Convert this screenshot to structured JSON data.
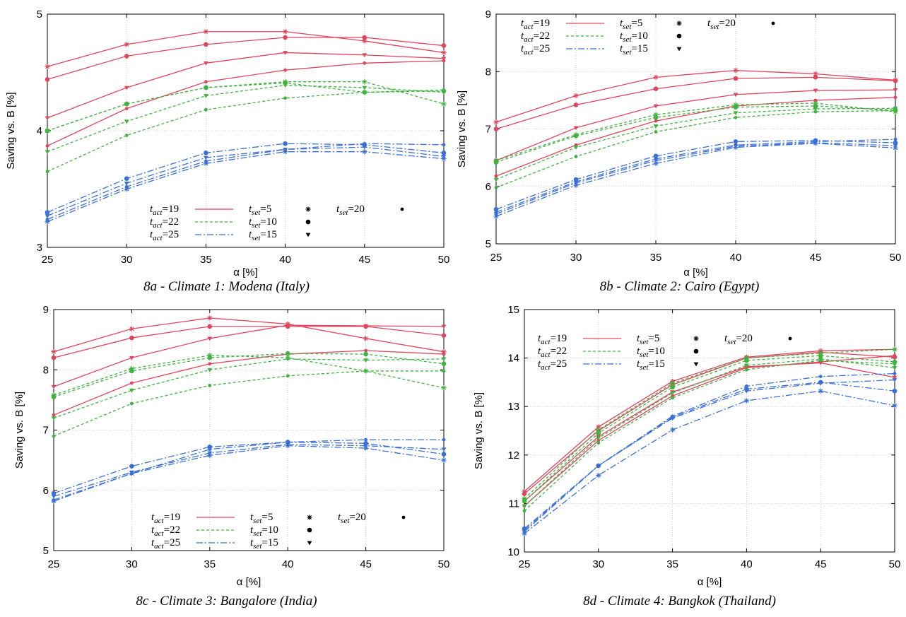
{
  "chart_data": [
    {
      "type": "line",
      "caption": "8a - Climate 1: Modena (Italy)",
      "xlabel": "α [%]",
      "ylabel": "Saving vs. B [%]",
      "xlim": [
        25,
        50
      ],
      "ylim": [
        3,
        5
      ],
      "xticks": [
        "25",
        "30",
        "35",
        "40",
        "45",
        "50"
      ],
      "yticks": [
        "3",
        "4",
        "5"
      ],
      "grid": true,
      "legend_position": "bottom-center",
      "x": [
        25,
        30,
        35,
        40,
        45,
        50
      ],
      "series": [
        {
          "tact": "19",
          "tset": "5",
          "values": [
            4.55,
            4.74,
            4.85,
            4.85,
            4.77,
            4.67
          ]
        },
        {
          "tact": "19",
          "tset": "10",
          "values": [
            4.44,
            4.64,
            4.74,
            4.8,
            4.8,
            4.73
          ]
        },
        {
          "tact": "19",
          "tset": "15",
          "values": [
            4.11,
            4.37,
            4.58,
            4.67,
            4.65,
            4.62
          ]
        },
        {
          "tact": "19",
          "tset": "20",
          "values": [
            3.87,
            4.19,
            4.42,
            4.52,
            4.58,
            4.6
          ]
        },
        {
          "tact": "22",
          "tset": "5",
          "values": [
            4.0,
            4.23,
            4.37,
            4.42,
            4.42,
            4.23
          ]
        },
        {
          "tact": "22",
          "tset": "10",
          "values": [
            4.0,
            4.23,
            4.37,
            4.41,
            4.33,
            4.34
          ]
        },
        {
          "tact": "22",
          "tset": "15",
          "values": [
            3.82,
            4.08,
            4.3,
            4.39,
            4.37,
            4.33
          ]
        },
        {
          "tact": "22",
          "tset": "20",
          "values": [
            3.65,
            3.96,
            4.18,
            4.28,
            4.33,
            4.35
          ]
        },
        {
          "tact": "25",
          "tset": "5",
          "values": [
            3.22,
            3.5,
            3.72,
            3.82,
            3.82,
            3.76
          ]
        },
        {
          "tact": "25",
          "tset": "10",
          "values": [
            3.3,
            3.59,
            3.81,
            3.89,
            3.88,
            3.81
          ]
        },
        {
          "tact": "25",
          "tset": "15",
          "values": [
            3.27,
            3.55,
            3.77,
            3.84,
            3.86,
            3.78
          ]
        },
        {
          "tact": "25",
          "tset": "20",
          "values": [
            3.24,
            3.52,
            3.74,
            3.84,
            3.89,
            3.88
          ]
        }
      ]
    },
    {
      "type": "line",
      "caption": "8b - Climate 2: Cairo (Egypt)",
      "xlabel": "α [%]",
      "ylabel": "Saving vs. B [%]",
      "xlim": [
        25,
        50
      ],
      "ylim": [
        5,
        9
      ],
      "xticks": [
        "25",
        "30",
        "35",
        "40",
        "45",
        "50"
      ],
      "yticks": [
        "5",
        "6",
        "7",
        "8",
        "9"
      ],
      "grid": true,
      "legend_position": "top-left",
      "x": [
        25,
        30,
        35,
        40,
        45,
        50
      ],
      "series": [
        {
          "tact": "19",
          "tset": "5",
          "values": [
            7.12,
            7.58,
            7.9,
            8.02,
            7.96,
            7.85
          ]
        },
        {
          "tact": "19",
          "tset": "10",
          "values": [
            7.0,
            7.42,
            7.7,
            7.88,
            7.9,
            7.84
          ]
        },
        {
          "tact": "19",
          "tset": "15",
          "values": [
            6.45,
            7.02,
            7.4,
            7.6,
            7.67,
            7.68
          ]
        },
        {
          "tact": "19",
          "tset": "20",
          "values": [
            6.18,
            6.72,
            7.14,
            7.4,
            7.5,
            7.55
          ]
        },
        {
          "tact": "22",
          "tset": "5",
          "values": [
            6.45,
            6.9,
            7.25,
            7.42,
            7.45,
            7.3
          ]
        },
        {
          "tact": "22",
          "tset": "10",
          "values": [
            6.42,
            6.88,
            7.2,
            7.38,
            7.4,
            7.33
          ]
        },
        {
          "tact": "22",
          "tset": "15",
          "values": [
            6.12,
            6.68,
            7.05,
            7.28,
            7.35,
            7.36
          ]
        },
        {
          "tact": "22",
          "tset": "20",
          "values": [
            5.98,
            6.52,
            6.95,
            7.2,
            7.3,
            7.32
          ]
        },
        {
          "tact": "25",
          "tset": "5",
          "values": [
            5.48,
            6.02,
            6.4,
            6.68,
            6.75,
            6.67
          ]
        },
        {
          "tact": "25",
          "tset": "10",
          "values": [
            5.6,
            6.12,
            6.53,
            6.78,
            6.8,
            6.76
          ]
        },
        {
          "tact": "25",
          "tset": "15",
          "values": [
            5.52,
            6.06,
            6.45,
            6.7,
            6.76,
            6.71
          ]
        },
        {
          "tact": "25",
          "tset": "20",
          "values": [
            5.55,
            6.08,
            6.48,
            6.72,
            6.78,
            6.82
          ]
        }
      ]
    },
    {
      "type": "line",
      "caption": "8c - Climate 3: Bangalore (India)",
      "xlabel": "α [%]",
      "ylabel": "Saving vs. B [%]",
      "xlim": [
        25,
        50
      ],
      "ylim": [
        5,
        9
      ],
      "xticks": [
        "25",
        "30",
        "35",
        "40",
        "45",
        "50"
      ],
      "yticks": [
        "5",
        "6",
        "7",
        "8",
        "9"
      ],
      "grid": true,
      "legend_position": "bottom-center",
      "x": [
        25,
        30,
        35,
        40,
        45,
        50
      ],
      "series": [
        {
          "tact": "19",
          "tset": "5",
          "values": [
            8.3,
            8.68,
            8.86,
            8.76,
            8.52,
            8.3
          ]
        },
        {
          "tact": "19",
          "tset": "10",
          "values": [
            8.2,
            8.53,
            8.72,
            8.72,
            8.72,
            8.57
          ]
        },
        {
          "tact": "19",
          "tset": "15",
          "values": [
            7.72,
            8.2,
            8.52,
            8.74,
            8.73,
            8.72
          ]
        },
        {
          "tact": "19",
          "tset": "20",
          "values": [
            7.25,
            7.78,
            8.1,
            8.26,
            8.32,
            8.26
          ]
        },
        {
          "tact": "22",
          "tset": "5",
          "values": [
            7.58,
            8.02,
            8.24,
            8.2,
            7.98,
            7.7
          ]
        },
        {
          "tact": "22",
          "tset": "10",
          "values": [
            7.55,
            7.98,
            8.2,
            8.27,
            8.26,
            8.1
          ]
        },
        {
          "tact": "22",
          "tset": "15",
          "values": [
            7.2,
            7.66,
            8.0,
            8.18,
            8.16,
            8.18
          ]
        },
        {
          "tact": "22",
          "tset": "20",
          "values": [
            6.9,
            7.44,
            7.74,
            7.9,
            7.98,
            7.98
          ]
        },
        {
          "tact": "25",
          "tset": "5",
          "values": [
            5.82,
            6.28,
            6.58,
            6.74,
            6.7,
            6.5
          ]
        },
        {
          "tact": "25",
          "tset": "10",
          "values": [
            5.95,
            6.4,
            6.72,
            6.8,
            6.78,
            6.6
          ]
        },
        {
          "tact": "25",
          "tset": "15",
          "values": [
            5.9,
            6.3,
            6.62,
            6.76,
            6.74,
            6.68
          ]
        },
        {
          "tact": "25",
          "tset": "20",
          "values": [
            5.84,
            6.28,
            6.68,
            6.8,
            6.84,
            6.84
          ]
        }
      ]
    },
    {
      "type": "line",
      "caption": "8d - Climate 4: Bangkok (Thailand)",
      "xlabel": "α [%]",
      "ylabel": "Saving vs. B [%]",
      "xlim": [
        25,
        50
      ],
      "ylim": [
        10,
        15
      ],
      "xticks": [
        "25",
        "30",
        "35",
        "40",
        "45",
        "50"
      ],
      "yticks": [
        "10",
        "11",
        "12",
        "13",
        "14",
        "15"
      ],
      "grid": true,
      "legend_position": "top-left",
      "x": [
        25,
        30,
        35,
        40,
        45,
        50
      ],
      "series": [
        {
          "tact": "19",
          "tset": "5",
          "values": [
            11.25,
            12.58,
            13.52,
            14.02,
            14.15,
            14.18
          ]
        },
        {
          "tact": "19",
          "tset": "10",
          "values": [
            11.2,
            12.5,
            13.45,
            14.0,
            14.12,
            14.02
          ]
        },
        {
          "tact": "19",
          "tset": "15",
          "values": [
            11.05,
            12.38,
            13.3,
            13.82,
            13.9,
            13.6
          ]
        },
        {
          "tact": "19",
          "tset": "20",
          "values": [
            10.95,
            12.3,
            13.22,
            13.8,
            13.92,
            14.05
          ]
        },
        {
          "tact": "22",
          "tset": "5",
          "values": [
            11.1,
            12.52,
            13.48,
            14.0,
            14.1,
            14.18
          ]
        },
        {
          "tact": "22",
          "tset": "10",
          "values": [
            11.05,
            12.45,
            13.4,
            13.95,
            14.05,
            13.92
          ]
        },
        {
          "tact": "22",
          "tset": "15",
          "values": [
            10.95,
            12.35,
            13.28,
            13.85,
            13.98,
            13.8
          ]
        },
        {
          "tact": "22",
          "tset": "20",
          "values": [
            10.85,
            12.25,
            13.18,
            13.76,
            13.95,
            13.88
          ]
        },
        {
          "tact": "25",
          "tset": "5",
          "values": [
            10.38,
            11.58,
            12.52,
            13.12,
            13.32,
            13.02
          ]
        },
        {
          "tact": "25",
          "tset": "10",
          "values": [
            10.48,
            11.78,
            12.78,
            13.36,
            13.5,
            13.32
          ]
        },
        {
          "tact": "25",
          "tset": "15",
          "values": [
            10.42,
            11.78,
            12.76,
            13.32,
            13.48,
            13.55
          ]
        },
        {
          "tact": "25",
          "tset": "20",
          "values": [
            10.45,
            11.78,
            12.8,
            13.42,
            13.62,
            13.68
          ]
        }
      ]
    }
  ],
  "legend": {
    "tact_labels": [
      "19",
      "22",
      "25"
    ],
    "tset_labels": [
      "5",
      "10",
      "15",
      "20"
    ],
    "tact_sub": "act",
    "tset_sub": "set",
    "t": "t",
    "eq": "="
  },
  "colors": {
    "tact19": "#e0455e",
    "tact22": "#3fb33f",
    "tact25": "#3a6fd8",
    "grid": "#c8c8c8",
    "axis": "#000000"
  }
}
